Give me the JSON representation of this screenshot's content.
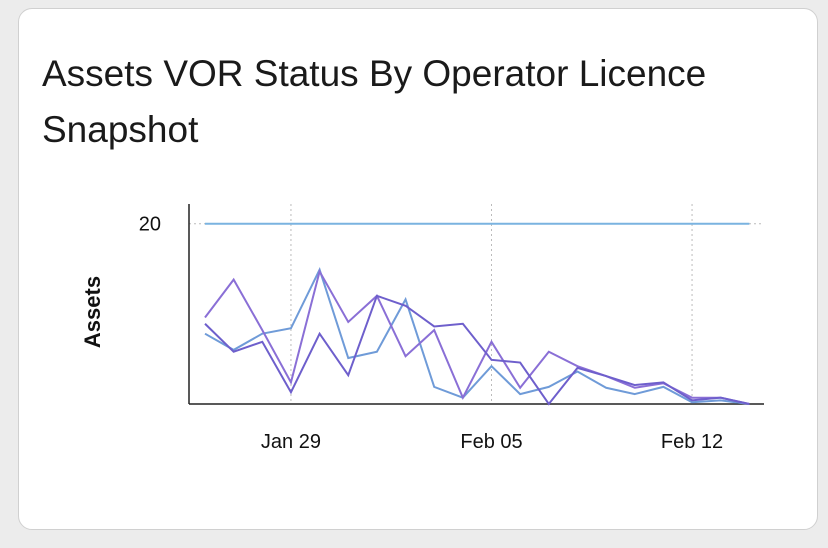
{
  "chart_data": {
    "type": "line",
    "title": "Assets VOR Status By Operator Licence Snapshot",
    "ylabel": "Assets",
    "x": [
      "Jan 26",
      "Jan 27",
      "Jan 28",
      "Jan 29",
      "Jan 30",
      "Jan 31",
      "Feb 01",
      "Feb 02",
      "Feb 03",
      "Feb 04",
      "Feb 05",
      "Feb 06",
      "Feb 07",
      "Feb 08",
      "Feb 09",
      "Feb 10",
      "Feb 11",
      "Feb 12",
      "Feb 13",
      "Feb 14"
    ],
    "xticks": [
      "Jan 29",
      "Feb 05",
      "Feb 12"
    ],
    "ylim": [
      0,
      21.3
    ],
    "yticks": [
      20
    ],
    "grid": true,
    "series": [
      {
        "color": "#7ab3e0",
        "values": [
          20,
          20,
          20,
          20,
          20,
          20,
          20,
          20,
          20,
          20,
          20,
          20,
          20,
          20,
          20,
          20,
          20,
          20,
          20,
          20
        ]
      },
      {
        "color": "#6f9bd8",
        "values": [
          7.8,
          6,
          7.8,
          8.4,
          14.9,
          5.1,
          5.8,
          11.6,
          1.9,
          0.7,
          4.2,
          1.1,
          1.9,
          3.6,
          1.8,
          1.1,
          1.9,
          0.2,
          0.4,
          0
        ]
      },
      {
        "color": "#8a6fd6",
        "values": [
          9.6,
          13.8,
          8.2,
          2.4,
          14.7,
          9.1,
          12,
          5.3,
          8.2,
          0.7,
          6.9,
          1.8,
          5.8,
          4.2,
          3.1,
          1.8,
          2.3,
          0.7,
          0.7,
          0
        ]
      },
      {
        "color": "#6e5fcc",
        "values": [
          8.9,
          5.8,
          6.9,
          1.3,
          7.8,
          3.2,
          12,
          10.9,
          8.6,
          8.9,
          4.9,
          4.6,
          0,
          4,
          3.1,
          2.1,
          2.4,
          0.4,
          0.7,
          0
        ]
      }
    ]
  }
}
